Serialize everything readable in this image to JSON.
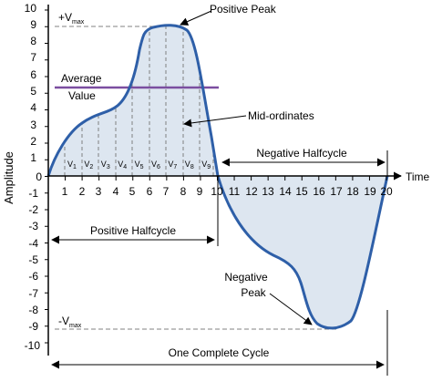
{
  "axis": {
    "x_label": "Time",
    "y_label": "Amplitude",
    "x_ticks": [
      "0",
      "1",
      "2",
      "3",
      "4",
      "5",
      "6",
      "7",
      "8",
      "9",
      "10",
      "11",
      "12",
      "13",
      "14",
      "15",
      "16",
      "17",
      "18",
      "19",
      "20"
    ],
    "y_ticks": [
      "10",
      "9",
      "8",
      "7",
      "6",
      "5",
      "4",
      "3",
      "2",
      "1",
      "0",
      "-1",
      "-2",
      "-3",
      "-4",
      "-5",
      "-6",
      "-7",
      "-8",
      "-9",
      "-10"
    ]
  },
  "labels": {
    "vmax_pos_prefix": "+V",
    "vmax_neg_prefix": "-V",
    "vmax_sub": "max",
    "positive_peak": "Positive Peak",
    "average_line1": "Average",
    "average_line2": "Value",
    "mid_ordinates": "Mid-ordinates",
    "negative_halfcycle": "Negative Halfcycle",
    "positive_halfcycle": "Positive Halfcycle",
    "negative_peak_line1": "Negative",
    "negative_peak_line2": "Peak",
    "one_complete_cycle": "One Complete Cycle"
  },
  "mid_ordinate_labels": [
    "V1",
    "V2",
    "V3",
    "V4",
    "V5",
    "V6",
    "V7",
    "V8",
    "V9"
  ],
  "colors": {
    "curve": "#2e5fa8",
    "fill": "#dde6f0",
    "average_line": "#7b4ea0",
    "dashed": "#808080"
  }
}
